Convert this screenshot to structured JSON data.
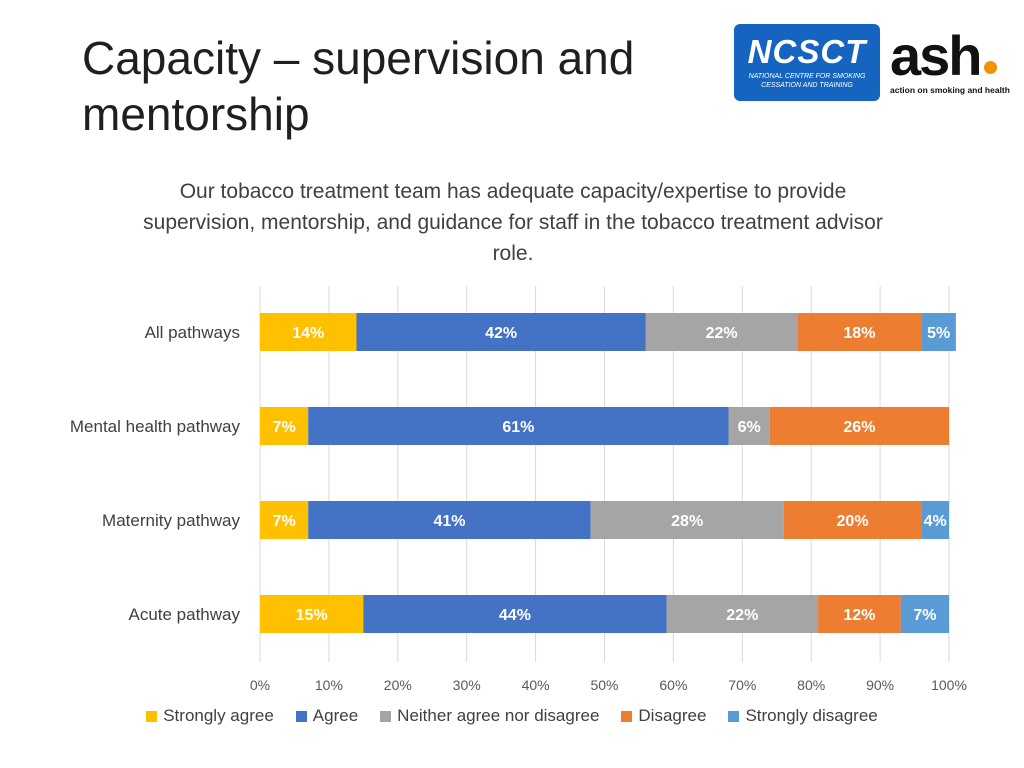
{
  "slide": {
    "title": "Capacity – supervision and mentorship"
  },
  "logos": {
    "ncsct": {
      "name": "NCSCT",
      "tagline": "NATIONAL CENTRE FOR SMOKING CESSATION AND TRAINING"
    },
    "ash": {
      "name": "ash",
      "tagline": "action on smoking and health"
    }
  },
  "chart_data": {
    "type": "bar",
    "orientation": "horizontal",
    "stacked": "percent",
    "title": "Our tobacco treatment team has adequate capacity/expertise to provide supervision, mentorship, and guidance for staff in the tobacco treatment advisor role.",
    "categories": [
      "All pathways",
      "Mental health pathway",
      "Maternity pathway",
      "Acute pathway"
    ],
    "series": [
      {
        "name": "Strongly agree",
        "color": "#ffc000",
        "values": [
          14,
          7,
          7,
          15
        ],
        "labels": [
          "14%",
          "7%",
          "7%",
          "15%"
        ]
      },
      {
        "name": "Agree",
        "color": "#4472c4",
        "values": [
          42,
          61,
          41,
          44
        ],
        "labels": [
          "42%",
          "61%",
          "41%",
          "44%"
        ]
      },
      {
        "name": "Neither agree nor disagree",
        "color": "#a5a5a5",
        "values": [
          22,
          6,
          28,
          22
        ],
        "labels": [
          "22%",
          "6%",
          "28%",
          "22%"
        ]
      },
      {
        "name": "Disagree",
        "color": "#ed7d31",
        "values": [
          18,
          26,
          20,
          12
        ],
        "labels": [
          "18%",
          "26%",
          "20%",
          "12%"
        ]
      },
      {
        "name": "Strongly disagree",
        "color": "#5b9bd5",
        "values": [
          5,
          0,
          4,
          7
        ],
        "labels": [
          "5%",
          "",
          "4%",
          "7%"
        ]
      }
    ],
    "x_ticks": [
      "0%",
      "10%",
      "20%",
      "30%",
      "40%",
      "50%",
      "60%",
      "70%",
      "80%",
      "90%",
      "100%"
    ],
    "xlim": [
      0,
      100
    ],
    "grid": true,
    "legend_position": "bottom"
  }
}
